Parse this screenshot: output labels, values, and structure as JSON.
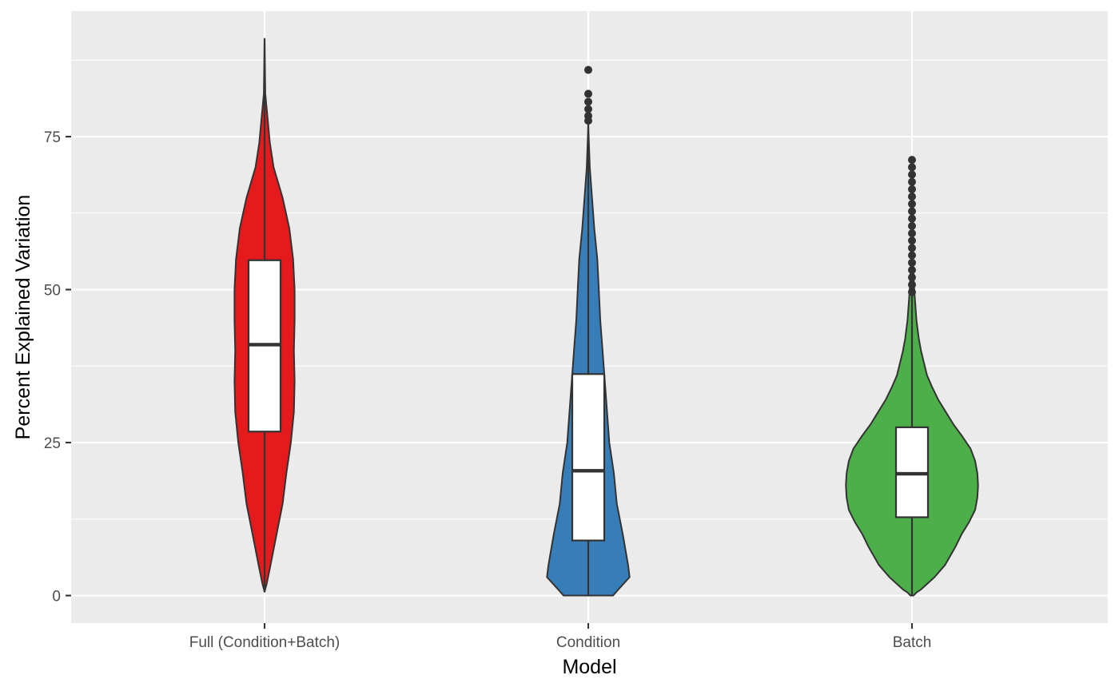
{
  "chart_data": {
    "type": "violin",
    "title": "",
    "xlabel": "Model",
    "ylabel": "Percent Explained Variation",
    "categories": [
      "Full (Condition+Batch)",
      "Condition",
      "Batch"
    ],
    "yticks": [
      0,
      25,
      50,
      75
    ],
    "ylim": [
      -4.5,
      95.5
    ],
    "grid": true,
    "legend": "none",
    "colors": {
      "panel_background": "#ebebeb",
      "grid": "#ffffff",
      "outline": "#333333",
      "box_fill": "#ffffff",
      "axis_text": "#4d4d4d",
      "axis_title": "#000000"
    },
    "series": [
      {
        "category": "Full (Condition+Batch)",
        "fill": "#e41a1c",
        "box": {
          "lower_whisker": 0.6,
          "q1": 26.8,
          "median": 41.0,
          "q3": 54.8,
          "upper_whisker": 91.0
        },
        "outliers": [],
        "density": [
          [
            0.6,
            0.0
          ],
          [
            2,
            0.03
          ],
          [
            5,
            0.08
          ],
          [
            10,
            0.16
          ],
          [
            15,
            0.24
          ],
          [
            20,
            0.29
          ],
          [
            25,
            0.35
          ],
          [
            30,
            0.39
          ],
          [
            35,
            0.4
          ],
          [
            40,
            0.39
          ],
          [
            45,
            0.4
          ],
          [
            50,
            0.4
          ],
          [
            55,
            0.38
          ],
          [
            60,
            0.33
          ],
          [
            65,
            0.24
          ],
          [
            70,
            0.12
          ],
          [
            74,
            0.07
          ],
          [
            78,
            0.04
          ],
          [
            82,
            0.01
          ],
          [
            86,
            0.005
          ],
          [
            91,
            0.0
          ]
        ]
      },
      {
        "category": "Condition",
        "fill": "#377eb8",
        "box": {
          "lower_whisker": 0.0,
          "q1": 9.0,
          "median": 20.4,
          "q3": 36.2,
          "upper_whisker": 77.0
        },
        "outliers": [
          77.6,
          78.4,
          79.5,
          80.7,
          82.0,
          85.9
        ],
        "density": [
          [
            0,
            0.33
          ],
          [
            1,
            0.4
          ],
          [
            3,
            0.55
          ],
          [
            5,
            0.53
          ],
          [
            10,
            0.46
          ],
          [
            15,
            0.38
          ],
          [
            20,
            0.34
          ],
          [
            25,
            0.28
          ],
          [
            30,
            0.25
          ],
          [
            35,
            0.22
          ],
          [
            40,
            0.19
          ],
          [
            45,
            0.16
          ],
          [
            50,
            0.14
          ],
          [
            55,
            0.12
          ],
          [
            60,
            0.08
          ],
          [
            65,
            0.05
          ],
          [
            70,
            0.02
          ],
          [
            75,
            0.005
          ],
          [
            77,
            0.0
          ]
        ]
      },
      {
        "category": "Batch",
        "fill": "#4daf4a",
        "box": {
          "lower_whisker": 0.0,
          "q1": 12.8,
          "median": 19.9,
          "q3": 27.5,
          "upper_whisker": 49.5
        },
        "outliers": [
          49.6,
          50.8,
          52.0,
          53.2,
          54.4,
          55.6,
          56.8,
          58.0,
          59.2,
          60.4,
          61.6,
          62.8,
          64.0,
          65.2,
          66.4,
          67.6,
          68.8,
          70.0,
          71.2
        ],
        "density": [
          [
            0,
            0.02
          ],
          [
            0.5,
            0.06
          ],
          [
            1,
            0.12
          ],
          [
            3,
            0.3
          ],
          [
            5,
            0.44
          ],
          [
            8,
            0.58
          ],
          [
            10,
            0.66
          ],
          [
            12,
            0.76
          ],
          [
            14,
            0.84
          ],
          [
            16,
            0.87
          ],
          [
            18,
            0.88
          ],
          [
            20,
            0.87
          ],
          [
            22,
            0.84
          ],
          [
            24,
            0.78
          ],
          [
            26,
            0.67
          ],
          [
            28,
            0.55
          ],
          [
            30,
            0.45
          ],
          [
            32,
            0.35
          ],
          [
            34,
            0.27
          ],
          [
            36,
            0.2
          ],
          [
            38,
            0.16
          ],
          [
            40,
            0.12
          ],
          [
            42,
            0.09
          ],
          [
            45,
            0.06
          ],
          [
            50,
            0.03
          ],
          [
            55,
            0.01
          ],
          [
            60,
            0.0
          ]
        ]
      }
    ]
  }
}
